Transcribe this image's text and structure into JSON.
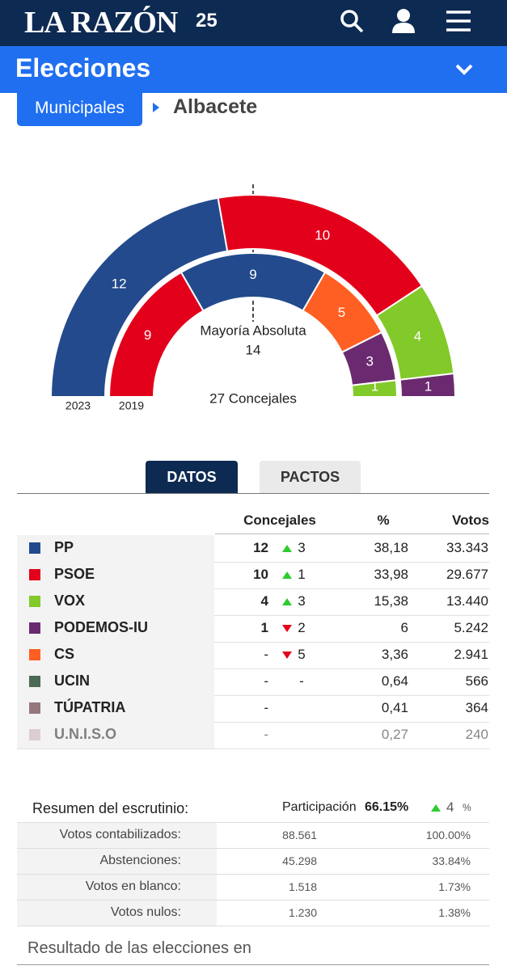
{
  "header": {
    "logo": "LA RAZÓN",
    "anniversary": "25"
  },
  "section": {
    "title": "Elecciones"
  },
  "breadcrumb": {
    "parent": "Municipales",
    "current": "Albacete"
  },
  "chart": {
    "majority_label": "Mayoría Absoluta",
    "majority": 14,
    "total_label": "27 Concejales",
    "rings": [
      {
        "name": "2023",
        "segments": [
          {
            "seats": 12,
            "color": "#234a8c"
          },
          {
            "seats": 10,
            "color": "#e3001b"
          },
          {
            "seats": 4,
            "color": "#82c92a"
          },
          {
            "seats": 1,
            "color": "#6b2a6f"
          }
        ]
      },
      {
        "name": "2019",
        "segments": [
          {
            "seats": 9,
            "color": "#e3001b"
          },
          {
            "seats": 9,
            "color": "#234a8c"
          },
          {
            "seats": 5,
            "color": "#ff5f22"
          },
          {
            "seats": 3,
            "color": "#6b2a6f"
          },
          {
            "seats": 1,
            "color": "#82c92a"
          }
        ]
      }
    ]
  },
  "tabs": [
    "DATOS",
    "PACTOS"
  ],
  "table": {
    "headers": [
      "Concejales",
      "%",
      "Votos"
    ],
    "rows": [
      {
        "party": "PP",
        "color": "#234a8c",
        "seats": "12",
        "change": {
          "dir": "up",
          "value": "3"
        },
        "pct": "38,18",
        "votes": "33.343"
      },
      {
        "party": "PSOE",
        "color": "#e3001b",
        "seats": "10",
        "change": {
          "dir": "up",
          "value": "1"
        },
        "pct": "33,98",
        "votes": "29.677"
      },
      {
        "party": "VOX",
        "color": "#82c92a",
        "seats": "4",
        "change": {
          "dir": "up",
          "value": "3"
        },
        "pct": "15,38",
        "votes": "13.440"
      },
      {
        "party": "PODEMOS-IU",
        "color": "#6b2a6f",
        "seats": "1",
        "change": {
          "dir": "down",
          "value": "2"
        },
        "pct": "6",
        "votes": "5.242"
      },
      {
        "party": "CS",
        "color": "#ff5f22",
        "seats": "-",
        "change": {
          "dir": "down",
          "value": "5"
        },
        "pct": "3,36",
        "votes": "2.941"
      },
      {
        "party": "UCIN",
        "color": "#4a6a54",
        "seats": "-",
        "change": {
          "value": "-"
        },
        "pct": "0,64",
        "votes": "566"
      },
      {
        "party": "TÚPATRIA",
        "color": "#94787e",
        "seats": "-",
        "pct": "0,41",
        "votes": "364"
      },
      {
        "party": "U.N.I.S.O",
        "color": "#c9adb3",
        "seats": "-",
        "pct": "0,27",
        "votes": "240"
      }
    ]
  },
  "summary": {
    "title": "Resumen del escrutinio:",
    "participation_label": "Participación",
    "participation": "66.15%",
    "participation_change": "4",
    "participation_unit": "%",
    "rows": [
      {
        "label": "Votos contabilizados:",
        "value": "88.561",
        "pct": "100.00%"
      },
      {
        "label": "Abstenciones:",
        "value": "45.298",
        "pct": "33.84%"
      },
      {
        "label": "Votos en blanco:",
        "value": "1.518",
        "pct": "1.73%"
      },
      {
        "label": "Votos nulos:",
        "value": "1.230",
        "pct": "1.38%"
      }
    ]
  },
  "footer_text": "Resultado de las elecciones en"
}
